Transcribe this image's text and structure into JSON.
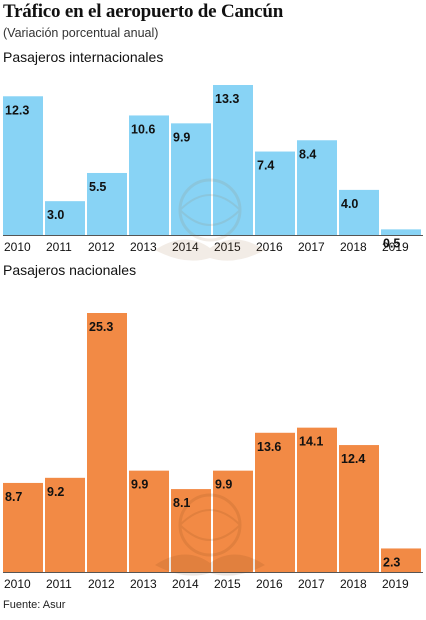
{
  "header": {
    "title": "Tráfico en el aeropuerto de Cancún",
    "subtitle": "(Variación porcentual anual)"
  },
  "footer": {
    "source": "Fuente: Asur"
  },
  "colors": {
    "international": "#88d3f5",
    "national": "#f28a45",
    "baseline": "#555555"
  },
  "chart_data": [
    {
      "type": "bar",
      "title": "Pasajeros internacionales",
      "categories": [
        "2010",
        "2011",
        "2012",
        "2013",
        "2014",
        "2015",
        "2016",
        "2017",
        "2018",
        "2019"
      ],
      "values": [
        12.3,
        3.0,
        5.5,
        10.6,
        9.9,
        13.3,
        7.4,
        8.4,
        4.0,
        0.5
      ],
      "value_labels": [
        "12.3",
        "3.0",
        "5.5",
        "10.6",
        "9.9",
        "13.3",
        "7.4",
        "8.4",
        "4.0",
        "0.5"
      ],
      "ylim": [
        0,
        13.3
      ],
      "grid": false,
      "color": "#88d3f5"
    },
    {
      "type": "bar",
      "title": "Pasajeros nacionales",
      "categories": [
        "2010",
        "2011",
        "2012",
        "2013",
        "2014",
        "2015",
        "2016",
        "2017",
        "2018",
        "2019"
      ],
      "values": [
        8.7,
        9.2,
        25.3,
        9.9,
        8.1,
        9.9,
        13.6,
        14.1,
        12.4,
        2.3
      ],
      "value_labels": [
        "8.7",
        "9.2",
        "25.3",
        "9.9",
        "8.1",
        "9.9",
        "13.6",
        "14.1",
        "12.4",
        "2.3"
      ],
      "ylim": [
        0,
        25.3
      ],
      "grid": false,
      "color": "#f28a45"
    }
  ]
}
